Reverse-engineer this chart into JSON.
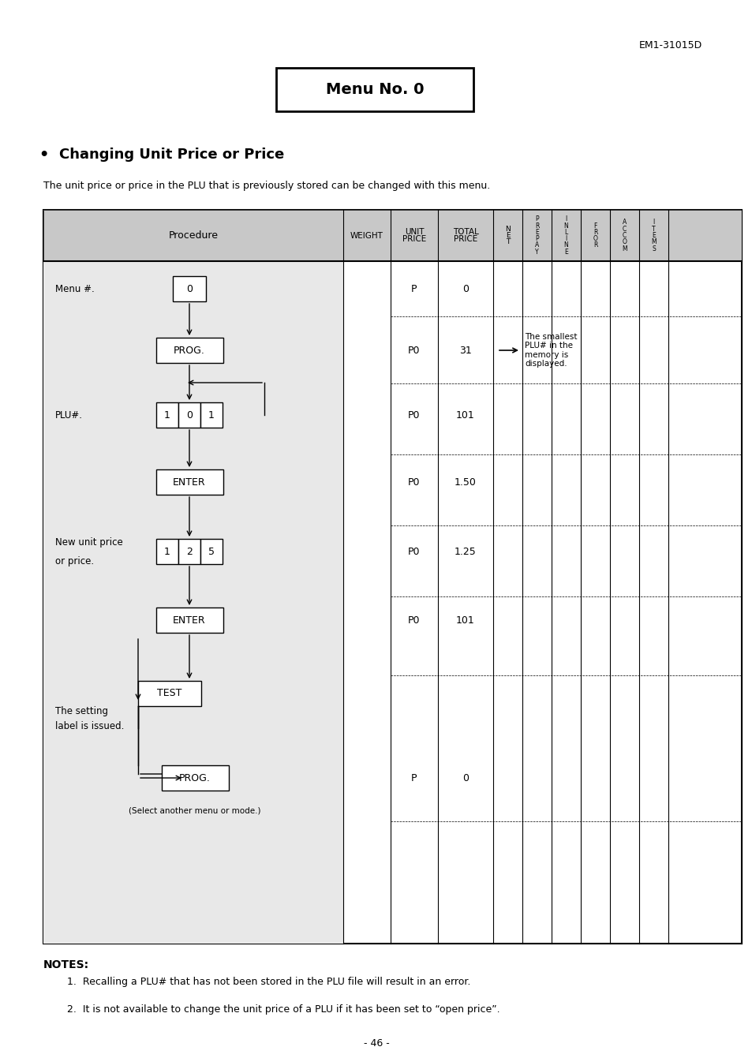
{
  "header_text": "EM1-31015D",
  "menu_title": "Menu No. 0",
  "section_title": "Changing Unit Price or Price",
  "section_bullet": "•",
  "description": "The unit price or price in the PLU that is previously stored can be changed with this menu.",
  "col_headers": [
    "Procedure",
    "WEIGHT",
    "UNIT\nPRICE",
    "TOTAL\nPRICE",
    "N\nE\nT",
    "P\nR\nE\nP\nA\nY",
    "I\nN\nL\nI\nN\nE",
    "F\nR\nO\nR",
    "A\nC\nC\nO\nM",
    "I\nT\nE\nM\nS"
  ],
  "unit_price_col": [
    "P",
    "P0",
    "P0",
    "P0",
    "P0",
    "P0",
    "P",
    ""
  ],
  "total_price_col": [
    "0",
    "31",
    "101",
    "1.50",
    "1.25",
    "101",
    "0",
    ""
  ],
  "notes_title": "NOTES:",
  "notes": [
    "Recalling a PLU# that has not been stored in the PLU file will result in an error.",
    "It is not available to change the unit price of a PLU if it has been set to “open price”."
  ],
  "page_number": "- 46 -",
  "annotation_text": "The smallest\nPLU# in the\nmemory is\ndisplayed.",
  "bg_color": "#ffffff",
  "table_bg": "#d8d8d8",
  "border_color": "#000000"
}
